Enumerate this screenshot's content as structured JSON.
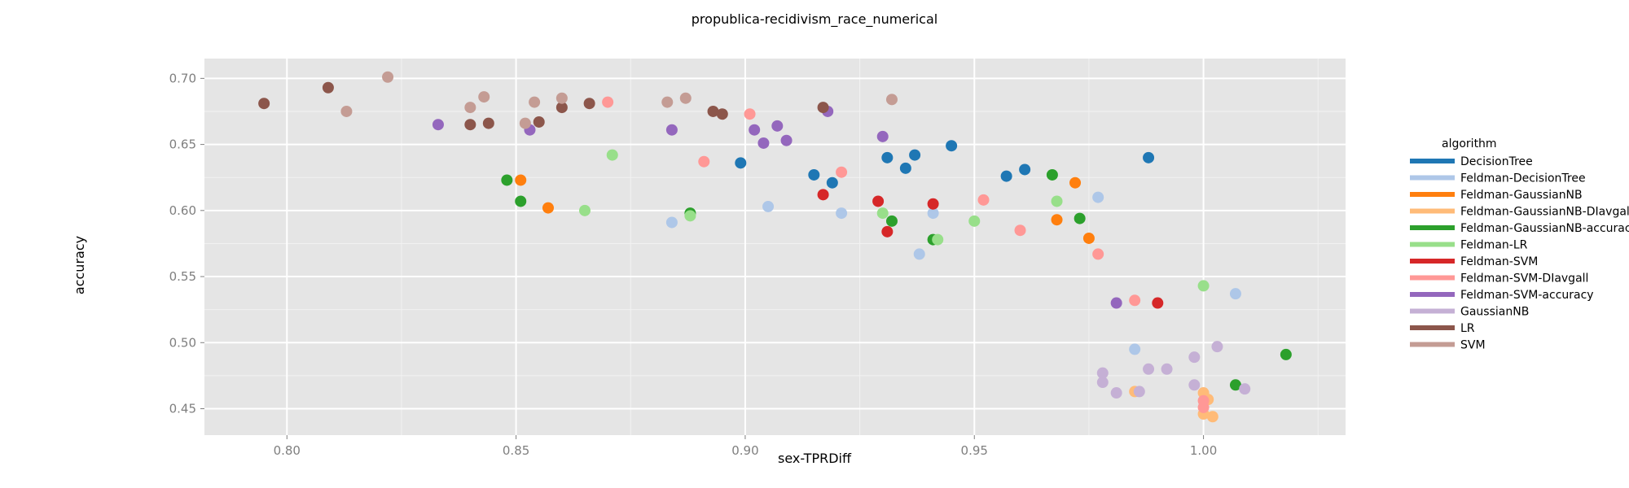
{
  "chart_data": {
    "type": "scatter",
    "title": "propublica-recidivism_race_numerical",
    "xlabel": "sex-TPRDiff",
    "ylabel": "accuracy",
    "xlim": [
      0.782,
      1.031
    ],
    "ylim": [
      0.43,
      0.715
    ],
    "x_ticks": [
      0.8,
      0.85,
      0.9,
      0.95,
      1.0
    ],
    "x_tick_labels": [
      "0.80",
      "0.85",
      "0.90",
      "0.95",
      "1.00"
    ],
    "y_ticks": [
      0.45,
      0.5,
      0.55,
      0.6,
      0.65,
      0.7
    ],
    "y_tick_labels": [
      "0.45",
      "0.50",
      "0.55",
      "0.60",
      "0.65",
      "0.70"
    ],
    "grid": true,
    "legend_title": "algorithm",
    "legend_placement": "right",
    "series": [
      {
        "name": "DecisionTree",
        "color": "#1f77b4",
        "points": [
          [
            0.899,
            0.636
          ],
          [
            0.915,
            0.627
          ],
          [
            0.919,
            0.621
          ],
          [
            0.931,
            0.64
          ],
          [
            0.935,
            0.632
          ],
          [
            0.937,
            0.642
          ],
          [
            0.945,
            0.649
          ],
          [
            0.957,
            0.626
          ],
          [
            0.961,
            0.631
          ],
          [
            0.988,
            0.64
          ]
        ]
      },
      {
        "name": "Feldman-DecisionTree",
        "color": "#aec7e8",
        "points": [
          [
            0.884,
            0.591
          ],
          [
            0.905,
            0.603
          ],
          [
            0.921,
            0.598
          ],
          [
            0.938,
            0.567
          ],
          [
            0.941,
            0.598
          ],
          [
            0.977,
            0.61
          ],
          [
            0.985,
            0.495
          ],
          [
            1.007,
            0.537
          ]
        ]
      },
      {
        "name": "Feldman-GaussianNB",
        "color": "#ff7f0e",
        "points": [
          [
            0.851,
            0.623
          ],
          [
            0.857,
            0.602
          ],
          [
            0.968,
            0.593
          ],
          [
            0.972,
            0.621
          ],
          [
            0.975,
            0.579
          ]
        ]
      },
      {
        "name": "Feldman-GaussianNB-DIavgall",
        "color": "#ffbb78",
        "points": [
          [
            0.985,
            0.463
          ],
          [
            1.0,
            0.462
          ],
          [
            1.0,
            0.446
          ],
          [
            1.001,
            0.457
          ],
          [
            1.002,
            0.444
          ]
        ]
      },
      {
        "name": "Feldman-GaussianNB-accuracy",
        "color": "#2ca02c",
        "points": [
          [
            0.848,
            0.623
          ],
          [
            0.851,
            0.607
          ],
          [
            0.888,
            0.598
          ],
          [
            0.932,
            0.592
          ],
          [
            0.941,
            0.578
          ],
          [
            0.967,
            0.627
          ],
          [
            0.973,
            0.594
          ],
          [
            1.007,
            0.468
          ],
          [
            1.018,
            0.491
          ]
        ]
      },
      {
        "name": "Feldman-LR",
        "color": "#98df8a",
        "points": [
          [
            0.865,
            0.6
          ],
          [
            0.871,
            0.642
          ],
          [
            0.888,
            0.596
          ],
          [
            0.93,
            0.598
          ],
          [
            0.942,
            0.578
          ],
          [
            0.95,
            0.592
          ],
          [
            0.968,
            0.607
          ],
          [
            1.0,
            0.543
          ]
        ]
      },
      {
        "name": "Feldman-SVM",
        "color": "#d62728",
        "points": [
          [
            0.917,
            0.612
          ],
          [
            0.929,
            0.607
          ],
          [
            0.931,
            0.584
          ],
          [
            0.941,
            0.605
          ],
          [
            0.99,
            0.53
          ]
        ]
      },
      {
        "name": "Feldman-SVM-DIavgall",
        "color": "#ff9896",
        "points": [
          [
            0.87,
            0.682
          ],
          [
            0.891,
            0.637
          ],
          [
            0.901,
            0.673
          ],
          [
            0.921,
            0.629
          ],
          [
            0.952,
            0.608
          ],
          [
            0.96,
            0.585
          ],
          [
            0.977,
            0.567
          ],
          [
            0.985,
            0.532
          ],
          [
            1.0,
            0.456
          ],
          [
            1.0,
            0.451
          ]
        ]
      },
      {
        "name": "Feldman-SVM-accuracy",
        "color": "#9467bd",
        "points": [
          [
            0.833,
            0.665
          ],
          [
            0.853,
            0.661
          ],
          [
            0.884,
            0.661
          ],
          [
            0.902,
            0.661
          ],
          [
            0.904,
            0.651
          ],
          [
            0.907,
            0.664
          ],
          [
            0.909,
            0.653
          ],
          [
            0.918,
            0.675
          ],
          [
            0.93,
            0.656
          ],
          [
            0.981,
            0.53
          ]
        ]
      },
      {
        "name": "GaussianNB",
        "color": "#c5b0d5",
        "points": [
          [
            0.978,
            0.477
          ],
          [
            0.978,
            0.47
          ],
          [
            0.981,
            0.462
          ],
          [
            0.986,
            0.463
          ],
          [
            0.988,
            0.48
          ],
          [
            0.992,
            0.48
          ],
          [
            0.998,
            0.489
          ],
          [
            0.998,
            0.468
          ],
          [
            1.003,
            0.497
          ],
          [
            1.009,
            0.465
          ]
        ]
      },
      {
        "name": "LR",
        "color": "#8c564b",
        "points": [
          [
            0.795,
            0.681
          ],
          [
            0.809,
            0.693
          ],
          [
            0.84,
            0.665
          ],
          [
            0.844,
            0.666
          ],
          [
            0.855,
            0.667
          ],
          [
            0.86,
            0.678
          ],
          [
            0.866,
            0.681
          ],
          [
            0.893,
            0.675
          ],
          [
            0.895,
            0.673
          ],
          [
            0.917,
            0.678
          ]
        ]
      },
      {
        "name": "SVM",
        "color": "#c49c94",
        "points": [
          [
            0.813,
            0.675
          ],
          [
            0.822,
            0.701
          ],
          [
            0.84,
            0.678
          ],
          [
            0.843,
            0.686
          ],
          [
            0.852,
            0.666
          ],
          [
            0.854,
            0.682
          ],
          [
            0.86,
            0.685
          ],
          [
            0.883,
            0.682
          ],
          [
            0.887,
            0.685
          ],
          [
            0.932,
            0.684
          ]
        ]
      }
    ]
  }
}
